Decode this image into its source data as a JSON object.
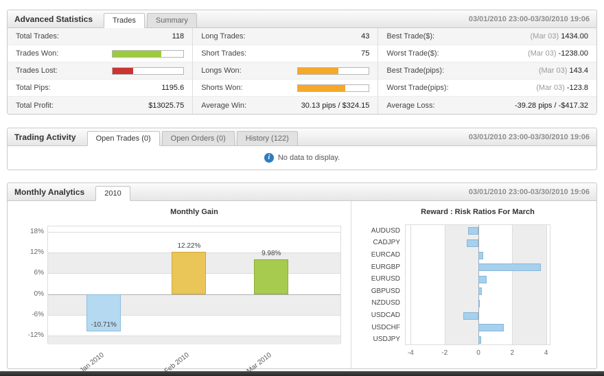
{
  "date_range": "03/01/2010 23:00-03/30/2010 19:06",
  "advanced_statistics": {
    "title": "Advanced Statistics",
    "tabs": [
      {
        "label": "Trades",
        "active": true
      },
      {
        "label": "Summary",
        "active": false
      }
    ],
    "columns": [
      [
        {
          "label": "Total Trades:",
          "value": "118"
        },
        {
          "label": "Trades Won:",
          "bar": {
            "color": "#9ccb3b",
            "pct": 69
          }
        },
        {
          "label": "Trades Lost:",
          "bar": {
            "color": "#cc3333",
            "pct": 29
          }
        },
        {
          "label": "Total Pips:",
          "value": "1195.6"
        },
        {
          "label": "Total Profit:",
          "value": "$13025.75"
        }
      ],
      [
        {
          "label": "Long Trades:",
          "value": "43"
        },
        {
          "label": "Short Trades:",
          "value": "75"
        },
        {
          "label": "Longs Won:",
          "bar": {
            "color": "#f6a828",
            "pct": 57
          }
        },
        {
          "label": "Shorts Won:",
          "bar": {
            "color": "#f6a828",
            "pct": 67
          }
        },
        {
          "label": "Average Win:",
          "value": "30.13 pips / $324.15"
        }
      ],
      [
        {
          "label": "Best Trade($):",
          "muted": "(Mar 03)",
          "value": "1434.00"
        },
        {
          "label": "Worst Trade($):",
          "muted": "(Mar 03)",
          "value": "-1238.00"
        },
        {
          "label": "Best Trade(pips):",
          "muted": "(Mar 03)",
          "value": "143.4"
        },
        {
          "label": "Worst Trade(pips):",
          "muted": "(Mar 03)",
          "value": "-123.8"
        },
        {
          "label": "Average Loss:",
          "value": "-39.28 pips / -$417.32"
        }
      ]
    ]
  },
  "trading_activity": {
    "title": "Trading Activity",
    "tabs": [
      {
        "label": "Open Trades (0)",
        "active": true
      },
      {
        "label": "Open Orders (0)",
        "active": false
      },
      {
        "label": "History (122)",
        "active": false
      }
    ],
    "message": "No data to display."
  },
  "monthly_analytics": {
    "title": "Monthly Analytics",
    "tabs": [
      {
        "label": "2010",
        "active": true
      }
    ]
  },
  "chart_data": [
    {
      "type": "bar",
      "title": "Monthly Gain",
      "categories": [
        "Jan 2010",
        "Feb 2010",
        "Mar 2010"
      ],
      "values": [
        -10.71,
        12.22,
        9.98
      ],
      "labels": [
        "-10.71%",
        "12.22%",
        "9.98%"
      ],
      "bar_colors": [
        "#b4d9f1",
        "#e9c657",
        "#a6cb4f"
      ],
      "bar_borders": [
        "#8cbede",
        "#cfa83c",
        "#8bad37"
      ],
      "ytick_values": [
        18,
        12,
        6,
        0,
        -6,
        -12
      ],
      "ytick_labels": [
        "18%",
        "12%",
        "6%",
        "0%",
        "-6%",
        "-12%"
      ],
      "ylim": [
        -14.5,
        19.5
      ],
      "grid": true,
      "legend": "none"
    },
    {
      "type": "bar-horizontal",
      "title": "Reward : Risk Ratios For March",
      "categories": [
        "AUDUSD",
        "CADJPY",
        "EURCAD",
        "EURGBP",
        "EURUSD",
        "GBPUSD",
        "NZDUSD",
        "USDCAD",
        "USDCHF",
        "USDJPY"
      ],
      "values": [
        -0.6,
        -0.7,
        0.3,
        3.7,
        0.5,
        0.2,
        0.1,
        -0.9,
        1.5,
        0.15
      ],
      "bar_color": "#a7d0ed",
      "bar_border": "#86b6da",
      "xtick_values": [
        -4,
        -2,
        0,
        2,
        4
      ],
      "xtick_labels": [
        "-4",
        "-2",
        "0",
        "2",
        "4"
      ],
      "xlim": [
        -4.3,
        4.3
      ],
      "grid": true,
      "legend": "none"
    }
  ],
  "colors": {
    "won_bar": "#9ccb3b",
    "lost_bar": "#cc3333",
    "orange_bar": "#f6a828",
    "chart_blue": "#a7d0ed",
    "band_gray": "#ededed"
  }
}
